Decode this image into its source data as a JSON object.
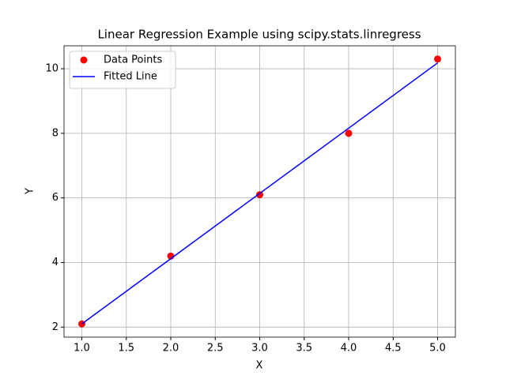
{
  "chart_data": {
    "type": "scatter",
    "title": "Linear Regression Example using scipy.stats.linregress",
    "xlabel": "X",
    "ylabel": "Y",
    "x": [
      1,
      2,
      3,
      4,
      5
    ],
    "series": [
      {
        "name": "Data Points",
        "type": "scatter",
        "color": "#ff0000",
        "values": [
          2.1,
          4.2,
          6.1,
          8.0,
          10.3
        ]
      },
      {
        "name": "Fitted Line",
        "type": "line",
        "color": "#0000ff",
        "values": [
          2.1,
          4.12,
          6.14,
          8.16,
          10.18
        ]
      }
    ],
    "xlim": [
      0.8,
      5.2
    ],
    "xticks": [
      {
        "value": 1,
        "label": "1.0"
      },
      {
        "value": 1.5,
        "label": "1.5"
      },
      {
        "value": 2,
        "label": "2.0"
      },
      {
        "value": 2.5,
        "label": "2.5"
      },
      {
        "value": 3,
        "label": "3.0"
      },
      {
        "value": 3.5,
        "label": "3.5"
      },
      {
        "value": 4,
        "label": "4.0"
      },
      {
        "value": 4.5,
        "label": "4.5"
      },
      {
        "value": 5,
        "label": "5.0"
      }
    ],
    "ylim": [
      1.69,
      10.71
    ],
    "yticks": [
      2,
      4,
      6,
      8,
      10
    ],
    "grid": true,
    "legend": "upper left"
  }
}
